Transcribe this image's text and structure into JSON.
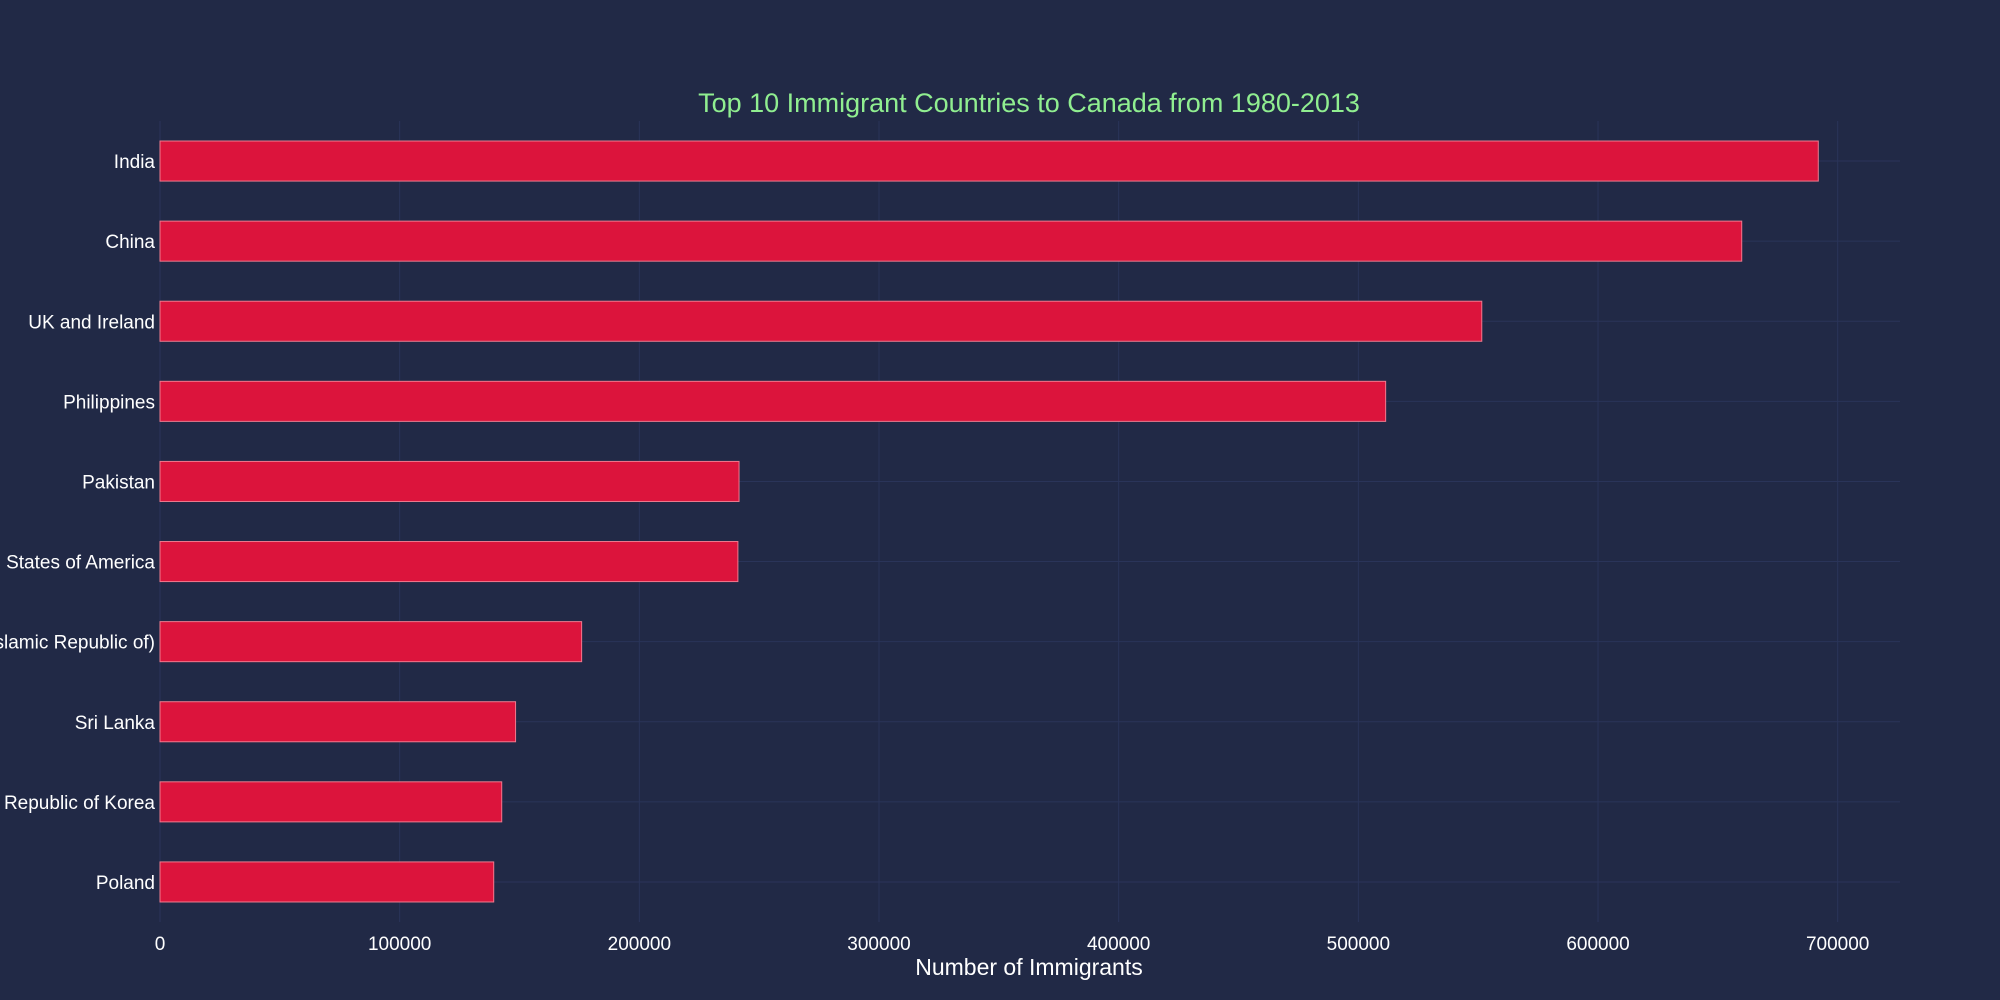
{
  "chart_data": {
    "type": "bar",
    "orientation": "horizontal",
    "title": "Top 10 Immigrant Countries to Canada from 1980-2013",
    "xlabel": "Number of Immigrants",
    "ylabel": "",
    "categories": [
      "India",
      "China",
      "UK and Ireland",
      "Philippines",
      "Pakistan",
      "United States of America",
      "Iran (Islamic Republic of)",
      "Sri Lanka",
      "Republic of Korea",
      "Poland"
    ],
    "values": [
      691904,
      659962,
      551500,
      511391,
      241600,
      241122,
      175923,
      148358,
      142581,
      139241
    ],
    "xlim": [
      0,
      726000
    ],
    "xticks": [
      0,
      100000,
      200000,
      300000,
      400000,
      500000,
      600000,
      700000
    ],
    "grid": true,
    "legend": "none"
  },
  "colors": {
    "background": "#212946",
    "bar_fill": "#dc143c",
    "bar_edge": "#f07a8e",
    "grid": "#2a3459",
    "title": "#90ee90",
    "text": "#ffffff"
  }
}
